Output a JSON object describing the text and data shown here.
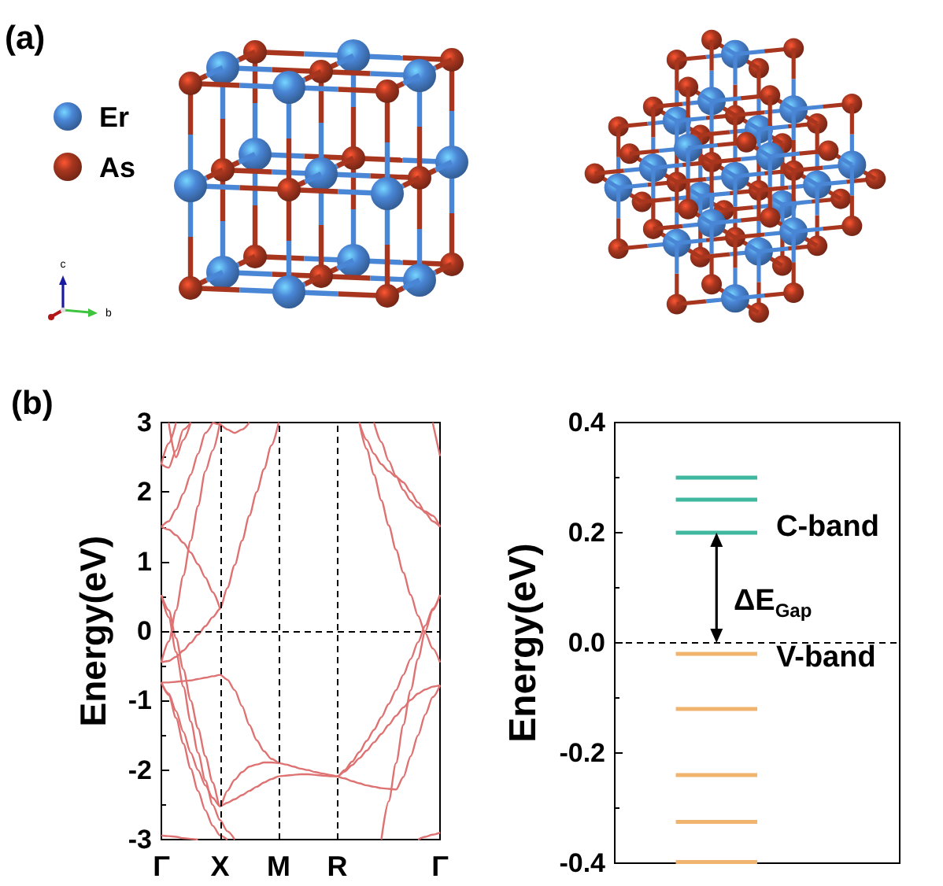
{
  "chart_data": [
    {
      "type": "other",
      "title": "(a)",
      "categories": [
        "Er",
        "As"
      ],
      "colors": [
        "#4a86d6",
        "#a8361f"
      ],
      "annotations": [
        "c",
        "b"
      ]
    },
    {
      "type": "line",
      "title": "(b)",
      "ylabel": "Energy(eV)",
      "categories": [
        "Γ",
        null,
        null,
        null,
        null,
        null,
        null,
        null,
        "X",
        null,
        null,
        null,
        null,
        null,
        null,
        null,
        "M",
        null,
        null,
        null,
        null,
        null,
        null,
        null,
        "R",
        null,
        null,
        null,
        null,
        null,
        null,
        null,
        null,
        null,
        null,
        null,
        null,
        null,
        "Γ"
      ],
      "ylim": [
        -3,
        3
      ],
      "yticks": [
        -3,
        -2,
        -1,
        0,
        1,
        2,
        3
      ],
      "ref_lines": [
        {
          "axis": "x",
          "value": "X",
          "line_style": "dashed",
          "color": "#000000"
        },
        {
          "axis": "x",
          "value": "M",
          "line_style": "dashed",
          "color": "#000000"
        },
        {
          "axis": "x",
          "value": "R",
          "line_style": "dashed",
          "color": "#000000"
        },
        {
          "axis": "y",
          "value": 0,
          "line_style": "dashed",
          "color": "#000000"
        }
      ],
      "series": [
        {
          "color": "#de7272",
          "values": [
            -2.94,
            -2.95,
            -2.96,
            -2.98,
            -2.99,
            -3.0,
            null,
            null,
            null,
            null,
            null,
            null,
            null,
            null,
            null,
            null,
            null,
            null,
            null,
            null,
            null,
            null,
            null,
            null,
            null,
            null,
            null,
            null,
            null,
            null,
            null,
            null,
            null,
            null,
            null,
            null,
            null,
            null,
            null
          ]
        },
        {
          "color": "#de7272",
          "values": [
            0.52,
            0.3,
            -0.1,
            -0.55,
            -1.0,
            -1.4,
            -1.8,
            -2.18,
            -2.52,
            -2.47,
            -2.42,
            -2.36,
            -2.3,
            -2.24,
            -2.18,
            -2.13,
            -2.09,
            -2.08,
            -2.07,
            -2.06,
            -2.06,
            -2.07,
            -2.08,
            -2.09,
            -2.09,
            -2.0,
            -1.88,
            -1.74,
            -1.58,
            -1.42,
            -1.24,
            -1.05,
            -0.85,
            -0.63,
            -0.4,
            -0.16,
            0.08,
            0.32,
            0.52
          ]
        },
        {
          "color": "#de7272",
          "values": [
            0.52,
            0.2,
            -0.3,
            -0.8,
            -1.3,
            -1.75,
            -2.15,
            -2.5,
            -2.72,
            -2.88,
            -3.0,
            null,
            null,
            null,
            null,
            null,
            null,
            null,
            null,
            null,
            null,
            null,
            null,
            null,
            null,
            null,
            null,
            null,
            null,
            null,
            null,
            null,
            null,
            null,
            null,
            null,
            null,
            null,
            null
          ]
        },
        {
          "color": "#de7272",
          "values": [
            -0.74,
            -0.9,
            -1.15,
            -1.45,
            -1.75,
            -2.0,
            -2.22,
            -2.4,
            -2.52,
            -2.3,
            -2.14,
            -2.03,
            -1.95,
            -1.92,
            -1.89,
            -1.89,
            -1.9,
            -1.92,
            -1.95,
            -1.98,
            -2.0,
            -2.03,
            -2.05,
            -2.07,
            -2.09,
            -2.02,
            -1.93,
            -1.83,
            -1.72,
            -1.6,
            -1.48,
            -1.35,
            -1.22,
            -1.1,
            -0.99,
            -0.9,
            -0.84,
            -0.8,
            -0.78
          ]
        },
        {
          "color": "#de7272",
          "values": [
            -0.74,
            -0.92,
            -1.25,
            -1.62,
            -1.98,
            -2.3,
            -2.58,
            -2.8,
            -2.94,
            -3.0,
            null,
            null,
            null,
            null,
            null,
            null,
            null,
            null,
            null,
            null,
            null,
            null,
            null,
            null,
            null,
            null,
            null,
            null,
            null,
            null,
            null,
            null,
            null,
            null,
            null,
            null,
            null,
            null,
            null
          ]
        },
        {
          "color": "#de7272",
          "values": [
            -0.74,
            -0.74,
            -0.73,
            -0.72,
            -0.71,
            -0.69,
            -0.67,
            -0.65,
            -0.63,
            -0.7,
            -0.85,
            -1.08,
            -1.35,
            -1.57,
            -1.73,
            -1.84,
            -1.9,
            null,
            null,
            null,
            null,
            null,
            null,
            null,
            null,
            null,
            null,
            null,
            null,
            null,
            null,
            null,
            null,
            null,
            null,
            null,
            null,
            null,
            null
          ]
        },
        {
          "color": "#de7272",
          "values": [
            null,
            null,
            null,
            null,
            null,
            null,
            null,
            null,
            null,
            null,
            null,
            null,
            null,
            null,
            null,
            null,
            null,
            null,
            null,
            null,
            null,
            null,
            null,
            null,
            -2.09,
            -2.12,
            -2.16,
            -2.19,
            -2.22,
            -2.24,
            -2.26,
            -2.27,
            -2.28,
            -2.1,
            -1.8,
            -1.5,
            -1.2,
            -0.95,
            -0.78
          ]
        },
        {
          "color": "#de7272",
          "values": [
            null,
            null,
            null,
            null,
            null,
            null,
            null,
            null,
            null,
            null,
            null,
            null,
            null,
            null,
            null,
            null,
            null,
            null,
            null,
            null,
            null,
            null,
            null,
            null,
            null,
            null,
            null,
            null,
            null,
            null,
            -3.0,
            -2.45,
            -1.9,
            -1.35,
            -0.85,
            -0.4,
            0.0,
            0.3,
            0.52
          ]
        },
        {
          "color": "#de7272",
          "values": [
            -0.45,
            -0.43,
            -0.37,
            -0.28,
            -0.17,
            -0.05,
            0.07,
            0.2,
            0.32,
            0.62,
            0.95,
            1.3,
            1.66,
            2.0,
            2.33,
            2.67,
            3.0,
            null,
            null,
            null,
            null,
            null,
            null,
            null,
            null,
            null,
            null,
            null,
            null,
            null,
            null,
            null,
            null,
            null,
            null,
            null,
            null,
            null,
            null
          ]
        },
        {
          "color": "#de7272",
          "values": [
            1.5,
            1.46,
            1.38,
            1.27,
            1.13,
            0.96,
            0.77,
            0.56,
            0.32,
            null,
            null,
            null,
            null,
            null,
            null,
            null,
            null,
            null,
            null,
            null,
            null,
            null,
            null,
            null,
            null,
            null,
            null,
            null,
            null,
            null,
            null,
            null,
            null,
            null,
            null,
            null,
            null,
            null,
            null
          ]
        },
        {
          "color": "#de7272",
          "values": [
            -0.45,
            -0.15,
            0.3,
            0.8,
            1.3,
            1.8,
            2.3,
            2.6,
            3.0,
            null,
            null,
            null,
            null,
            null,
            null,
            null,
            null,
            null,
            null,
            null,
            null,
            null,
            null,
            null,
            null,
            null,
            null,
            null,
            null,
            null,
            null,
            null,
            null,
            null,
            null,
            null,
            null,
            null,
            null
          ]
        },
        {
          "color": "#de7272",
          "values": [
            1.5,
            1.58,
            1.75,
            1.98,
            2.25,
            2.55,
            2.85,
            3.0,
            null,
            null,
            null,
            null,
            null,
            null,
            null,
            null,
            null,
            null,
            null,
            null,
            null,
            null,
            null,
            null,
            null,
            null,
            null,
            null,
            null,
            null,
            null,
            null,
            null,
            null,
            null,
            null,
            null,
            null,
            null
          ]
        },
        {
          "color": "#de7272",
          "values": [
            2.4,
            2.7,
            3.0,
            null,
            null,
            null,
            null,
            null,
            null,
            null,
            null,
            null,
            null,
            null,
            null,
            null,
            null,
            null,
            null,
            null,
            null,
            null,
            null,
            null,
            null,
            null,
            null,
            null,
            null,
            null,
            null,
            null,
            null,
            null,
            null,
            null,
            null,
            null,
            null
          ]
        },
        {
          "color": "#de7272",
          "values": [
            2.4,
            2.35,
            2.6,
            2.9,
            3.0,
            null,
            null,
            null,
            null,
            null,
            null,
            null,
            null,
            null,
            null,
            null,
            null,
            null,
            null,
            null,
            null,
            null,
            null,
            null,
            null,
            null,
            null,
            null,
            null,
            null,
            null,
            null,
            null,
            null,
            null,
            null,
            null,
            null,
            null
          ]
        },
        {
          "color": "#de7272",
          "values": [
            null,
            3.0,
            2.5,
            2.75,
            3.0,
            null,
            null,
            null,
            null,
            null,
            null,
            null,
            null,
            null,
            null,
            null,
            null,
            null,
            null,
            null,
            null,
            null,
            null,
            null,
            null,
            null,
            null,
            null,
            null,
            null,
            null,
            null,
            null,
            null,
            null,
            null,
            null,
            null,
            null
          ]
        },
        {
          "color": "#de7272",
          "values": [
            null,
            null,
            null,
            null,
            null,
            null,
            null,
            3.0,
            2.97,
            2.9,
            2.85,
            2.9,
            3.0,
            null,
            null,
            null,
            null,
            null,
            null,
            null,
            null,
            null,
            null,
            null,
            null,
            null,
            null,
            null,
            null,
            null,
            null,
            null,
            null,
            null,
            null,
            null,
            null,
            null,
            null
          ]
        },
        {
          "color": "#de7272",
          "values": [
            null,
            null,
            null,
            null,
            null,
            null,
            null,
            null,
            null,
            null,
            null,
            null,
            null,
            null,
            null,
            null,
            null,
            null,
            null,
            null,
            null,
            null,
            null,
            null,
            null,
            null,
            null,
            3.0,
            2.62,
            2.25,
            1.88,
            1.52,
            1.17,
            0.84,
            0.52,
            0.22,
            -0.03,
            -0.25,
            -0.45
          ]
        },
        {
          "color": "#de7272",
          "values": [
            null,
            null,
            null,
            null,
            null,
            null,
            null,
            null,
            null,
            null,
            null,
            null,
            null,
            null,
            null,
            null,
            null,
            null,
            null,
            null,
            null,
            null,
            null,
            null,
            null,
            null,
            null,
            3.0,
            2.75,
            2.55,
            2.4,
            2.3,
            2.22,
            2.14,
            2.0,
            1.85,
            1.7,
            1.58,
            1.5
          ]
        },
        {
          "color": "#de7272",
          "values": [
            null,
            null,
            null,
            null,
            null,
            null,
            null,
            null,
            null,
            null,
            null,
            null,
            null,
            null,
            null,
            null,
            null,
            null,
            null,
            null,
            null,
            null,
            null,
            null,
            null,
            null,
            null,
            null,
            null,
            3.0,
            2.72,
            2.45,
            2.23,
            2.03,
            1.88,
            1.78,
            1.72,
            1.66,
            1.5
          ]
        },
        {
          "color": "#de7272",
          "values": [
            null,
            null,
            null,
            null,
            null,
            null,
            null,
            null,
            null,
            null,
            null,
            null,
            null,
            null,
            null,
            null,
            null,
            null,
            null,
            null,
            null,
            null,
            null,
            null,
            null,
            null,
            null,
            null,
            null,
            null,
            null,
            null,
            null,
            null,
            null,
            null,
            null,
            3.0,
            2.52
          ]
        },
        {
          "color": "#de7272",
          "values": [
            null,
            null,
            null,
            null,
            null,
            null,
            null,
            null,
            null,
            null,
            null,
            null,
            null,
            null,
            null,
            null,
            null,
            null,
            null,
            null,
            null,
            null,
            null,
            null,
            null,
            null,
            null,
            null,
            null,
            null,
            null,
            null,
            null,
            null,
            null,
            -3.0,
            -2.96,
            -2.93,
            -2.9
          ]
        }
      ]
    },
    {
      "type": "line",
      "ylabel": "Energy(eV)",
      "categories": [
        null,
        null,
        null,
        null,
        null,
        null,
        null
      ],
      "ylim": [
        -0.4,
        0.4
      ],
      "yticks": [
        -0.4,
        -0.2,
        {
          "value": 0,
          "label": "0.0"
        },
        0.2,
        0.4
      ],
      "ref_lines": [
        {
          "axis": "y",
          "value": 0,
          "line_style": "dashed",
          "color": "#000000"
        }
      ],
      "annotations": [
        "C-band",
        "ΔE$_{Gap}$",
        "V-band"
      ],
      "series": [
        {
          "color": "#3fb8a0",
          "values": [
            null,
            0.3,
            0.3,
            0.3,
            null,
            null,
            null
          ]
        },
        {
          "color": "#3fb8a0",
          "values": [
            null,
            0.26,
            0.26,
            0.26,
            null,
            null,
            null
          ]
        },
        {
          "color": "#3fb8a0",
          "values": [
            null,
            0.2,
            0.2,
            0.2,
            null,
            null,
            null
          ]
        },
        {
          "color": "#f0b46e",
          "values": [
            null,
            -0.02,
            -0.02,
            -0.02,
            null,
            null,
            null
          ]
        },
        {
          "color": "#f0b46e",
          "values": [
            null,
            -0.12,
            -0.12,
            -0.12,
            null,
            null,
            null
          ]
        },
        {
          "color": "#f0b46e",
          "values": [
            null,
            -0.24,
            -0.24,
            -0.24,
            null,
            null,
            null
          ]
        },
        {
          "color": "#f0b46e",
          "values": [
            null,
            -0.325,
            -0.325,
            -0.325,
            null,
            null,
            null
          ]
        },
        {
          "color": "#f0b46e",
          "values": [
            null,
            -0.398,
            -0.398,
            -0.398,
            null,
            null,
            null
          ]
        }
      ]
    }
  ]
}
